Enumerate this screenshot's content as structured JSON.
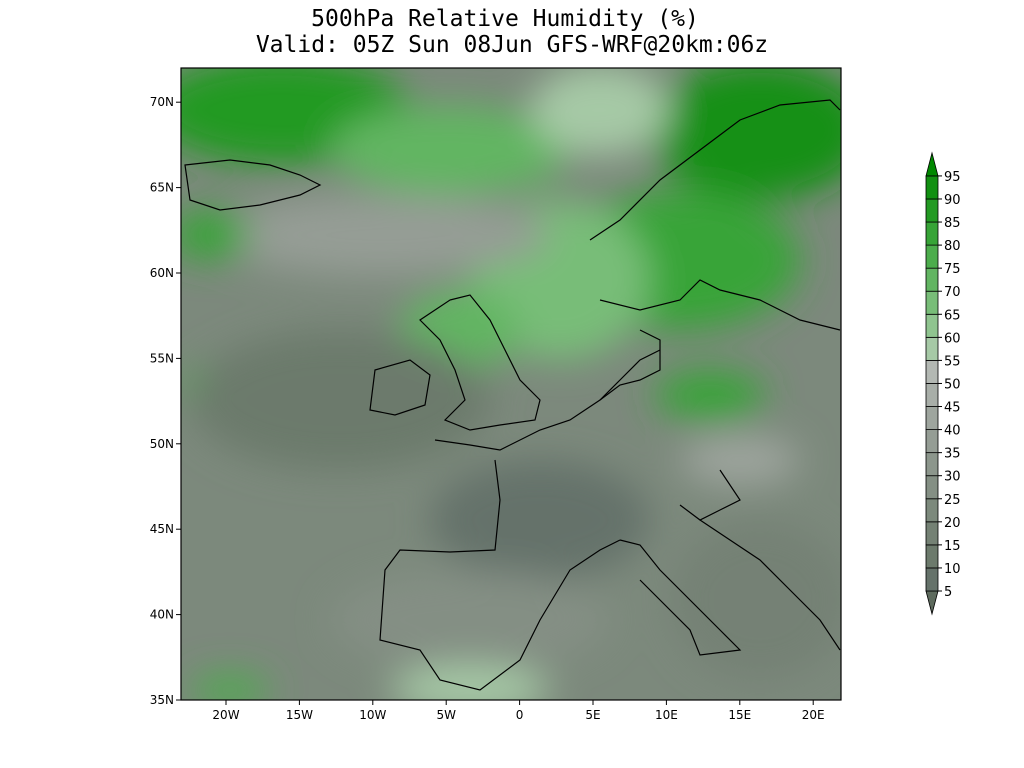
{
  "title": [
    "500hPa Relative Humidity (%)",
    "Valid: 05Z Sun 08Jun GFS-WRF@20km:06z"
  ],
  "map": {
    "lat_labels": [
      "70N",
      "65N",
      "60N",
      "55N",
      "50N",
      "45N",
      "40N",
      "35N"
    ],
    "lon_labels": [
      "20W",
      "15W",
      "10W",
      "5W",
      "0",
      "5E",
      "10E",
      "15E",
      "20E"
    ]
  },
  "colorbar": {
    "levels": [
      5,
      10,
      15,
      20,
      25,
      30,
      35,
      40,
      45,
      50,
      55,
      60,
      65,
      70,
      75,
      80,
      85,
      90,
      95
    ],
    "colors": [
      "#5d6a5d",
      "#65726a",
      "#6c7a6c",
      "#748174",
      "#7c897c",
      "#848f84",
      "#8c968c",
      "#959d95",
      "#9ea59e",
      "#a8aea8",
      "#b3b8b3",
      "#a6c9a6",
      "#8fc48f",
      "#78bd78",
      "#62b562",
      "#4cad4c",
      "#37a437",
      "#239a23",
      "#129012",
      "#008800"
    ]
  }
}
